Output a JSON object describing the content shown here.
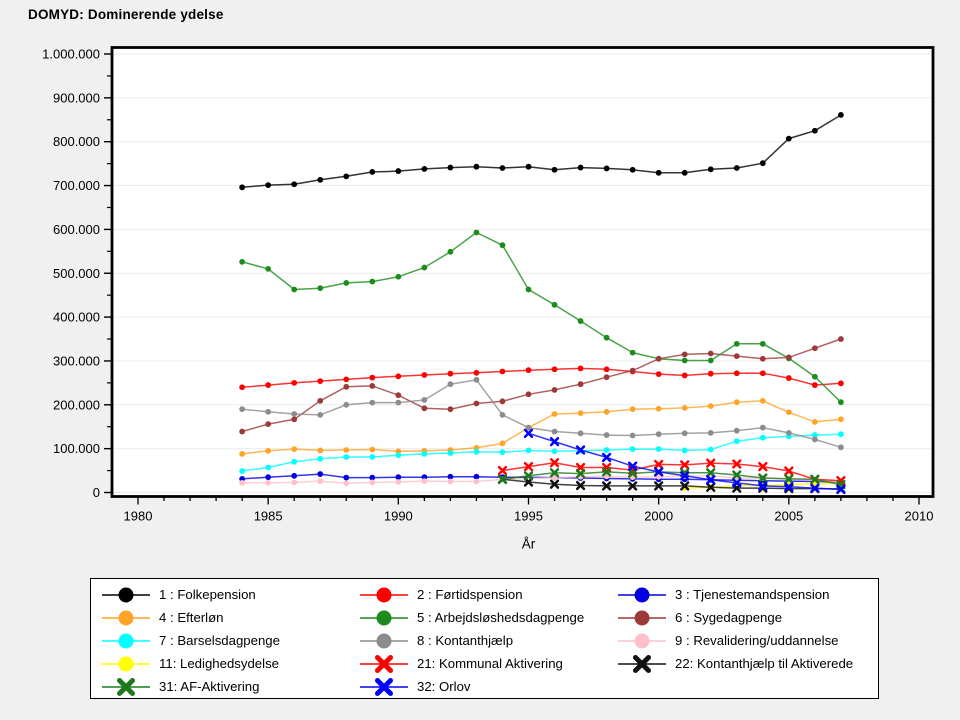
{
  "title": "DOMYD: Dominerende ydelse",
  "page": {
    "background": "#f0f0f0",
    "plot_background": "#ffffff",
    "frame_color": "#000000",
    "grid_color": "#ebebeb",
    "tick_color": "#000000"
  },
  "chart_data": {
    "type": "line",
    "title": "DOMYD: Dominerende ydelse",
    "xlabel": "År",
    "ylabel": "",
    "xlim": [
      1979,
      2010.6
    ],
    "ylim": [
      0,
      1000000
    ],
    "grid": "horizontal-light",
    "legend_position": "bottom",
    "x_ticks": [
      {
        "value": 1980,
        "label": "1980"
      },
      {
        "value": 1985,
        "label": "1985"
      },
      {
        "value": 1990,
        "label": "1990"
      },
      {
        "value": 1995,
        "label": "1995"
      },
      {
        "value": 2000,
        "label": "2000"
      },
      {
        "value": 2005,
        "label": "2005"
      },
      {
        "value": 2010,
        "label": "2010"
      }
    ],
    "x_minor_step": 1,
    "y_ticks": [
      {
        "value": 0,
        "label": "0"
      },
      {
        "value": 100000,
        "label": "100.000"
      },
      {
        "value": 200000,
        "label": "200.000"
      },
      {
        "value": 300000,
        "label": "300.000"
      },
      {
        "value": 400000,
        "label": "400.000"
      },
      {
        "value": 500000,
        "label": "500.000"
      },
      {
        "value": 600000,
        "label": "600.000"
      },
      {
        "value": 700000,
        "label": "700.000"
      },
      {
        "value": 800000,
        "label": "800.000"
      },
      {
        "value": 900000,
        "label": "900.000"
      },
      {
        "value": 1000000,
        "label": "1.000.000"
      }
    ],
    "y_minor_step": 50000,
    "series": [
      {
        "id": "1",
        "label": "1 : Folkepension",
        "color": "#000000",
        "marker": "circle",
        "start_year": 1984,
        "values": [
          696000,
          701000,
          703000,
          713000,
          721000,
          731000,
          733000,
          738000,
          741000,
          743000,
          740000,
          743000,
          736000,
          741000,
          739000,
          736000,
          729000,
          729000,
          737000,
          740000,
          751000,
          807000,
          825000,
          861000
        ]
      },
      {
        "id": "2",
        "label": "2 : Førtidspension",
        "color": "#ff0000",
        "marker": "circle",
        "start_year": 1984,
        "values": [
          240000,
          245000,
          250000,
          254000,
          258000,
          262000,
          265000,
          268000,
          271000,
          273000,
          276000,
          279000,
          281000,
          283000,
          281000,
          276000,
          270000,
          267000,
          271000,
          272000,
          272000,
          261000,
          245000,
          249000
        ]
      },
      {
        "id": "3",
        "label": "3 : Tjenestemandspension",
        "color": "#0000e0",
        "marker": "circle",
        "start_year": 1984,
        "values": [
          31000,
          35000,
          38000,
          42000,
          34000,
          34000,
          35000,
          35000,
          36000,
          36000,
          35000,
          35000,
          34000,
          33000,
          32000,
          31000,
          30000,
          30000,
          29000,
          28000,
          27000,
          26000,
          25000,
          24000
        ]
      },
      {
        "id": "4",
        "label": "4 : Efterløn",
        "color": "#ffa428",
        "marker": "circle",
        "start_year": 1984,
        "values": [
          88000,
          95000,
          99000,
          96000,
          97000,
          98000,
          94000,
          95000,
          97000,
          102000,
          112000,
          148000,
          179000,
          181000,
          184000,
          190000,
          191000,
          193000,
          197000,
          206000,
          209000,
          183000,
          161000,
          167000
        ]
      },
      {
        "id": "5",
        "label": "5 : Arbejdsløshedsdagpenge",
        "color": "#1c8c1c",
        "marker": "circle",
        "start_year": 1984,
        "values": [
          526000,
          510000,
          463000,
          466000,
          478000,
          481000,
          492000,
          513000,
          549000,
          593000,
          564000,
          463000,
          428000,
          391000,
          353000,
          319000,
          305000,
          301000,
          301000,
          339000,
          339000,
          306000,
          264000,
          206000
        ]
      },
      {
        "id": "6",
        "label": "6 : Sygedagpenge",
        "color": "#9c3939",
        "marker": "circle",
        "start_year": 1984,
        "values": [
          139000,
          156000,
          167000,
          209000,
          241000,
          243000,
          222000,
          192000,
          190000,
          203000,
          208000,
          224000,
          234000,
          247000,
          263000,
          278000,
          305000,
          315000,
          317000,
          311000,
          305000,
          308000,
          329000,
          350000
        ]
      },
      {
        "id": "7",
        "label": "7 : Barselsdagpenge",
        "color": "#00ffff",
        "marker": "circle",
        "start_year": 1984,
        "values": [
          49000,
          57000,
          70000,
          77000,
          81000,
          81000,
          85000,
          88000,
          90000,
          93000,
          92000,
          96000,
          94000,
          95000,
          97000,
          99000,
          99000,
          96000,
          98000,
          117000,
          125000,
          128000,
          131000,
          133000
        ]
      },
      {
        "id": "8",
        "label": "8 : Kontanthjælp",
        "color": "#8c8c8c",
        "marker": "circle",
        "start_year": 1984,
        "values": [
          190000,
          184000,
          179000,
          177000,
          200000,
          205000,
          205000,
          211000,
          247000,
          257000,
          177000,
          148000,
          139000,
          135000,
          131000,
          130000,
          133000,
          135000,
          136000,
          141000,
          148000,
          136000,
          121000,
          103000
        ]
      },
      {
        "id": "9",
        "label": "9 : Revalidering/uddannelse",
        "color": "#ffc0cb",
        "marker": "circle",
        "start_year": 1984,
        "values": [
          22000,
          22000,
          23000,
          26000,
          21000,
          23000,
          24000,
          26000,
          25000,
          25000,
          30000,
          32000,
          34000,
          36000,
          37000,
          35000,
          36000,
          37000,
          38000,
          33000,
          33000,
          31000,
          28000,
          24000
        ]
      },
      {
        "id": "11",
        "label": "11: Ledighedsydelse",
        "color": "#ffff00",
        "marker": "circle",
        "start_year": 2001,
        "values": [
          10000,
          12000,
          15000,
          16000,
          18000,
          20000,
          21000
        ]
      },
      {
        "id": "21",
        "label": "21: Kommunal Aktivering",
        "color": "#ff0000",
        "marker": "x",
        "start_year": 1994,
        "values": [
          50000,
          59000,
          68000,
          57000,
          57000,
          51000,
          64000,
          63000,
          67000,
          65000,
          59000,
          49000,
          30000,
          27000
        ]
      },
      {
        "id": "22",
        "label": "22: Kontanthjælp til Aktiverede",
        "color": "#111111",
        "marker": "x",
        "start_year": 1994,
        "values": [
          30000,
          24000,
          19000,
          16000,
          15000,
          15000,
          15000,
          15000,
          12000,
          10000,
          10000,
          9000,
          9000,
          8000
        ]
      },
      {
        "id": "31",
        "label": "31: AF-Aktivering",
        "color": "#1c7a1c",
        "marker": "x",
        "start_year": 1994,
        "values": [
          30000,
          38000,
          45000,
          43000,
          47000,
          44000,
          47000,
          45000,
          45000,
          40000,
          33000,
          31000,
          30000,
          18000
        ]
      },
      {
        "id": "32",
        "label": "32: Orlov",
        "color": "#0000ff",
        "marker": "x",
        "start_year": 1995,
        "values": [
          135000,
          116000,
          97000,
          80000,
          60000,
          47000,
          38000,
          29000,
          22000,
          15000,
          13000,
          10000,
          7000
        ]
      }
    ]
  },
  "legend": {
    "columns": [
      [
        "1",
        "4",
        "7",
        "11",
        "31"
      ],
      [
        "2",
        "5",
        "8",
        "21",
        "32"
      ],
      [
        "3",
        "6",
        "9",
        "22"
      ]
    ]
  }
}
